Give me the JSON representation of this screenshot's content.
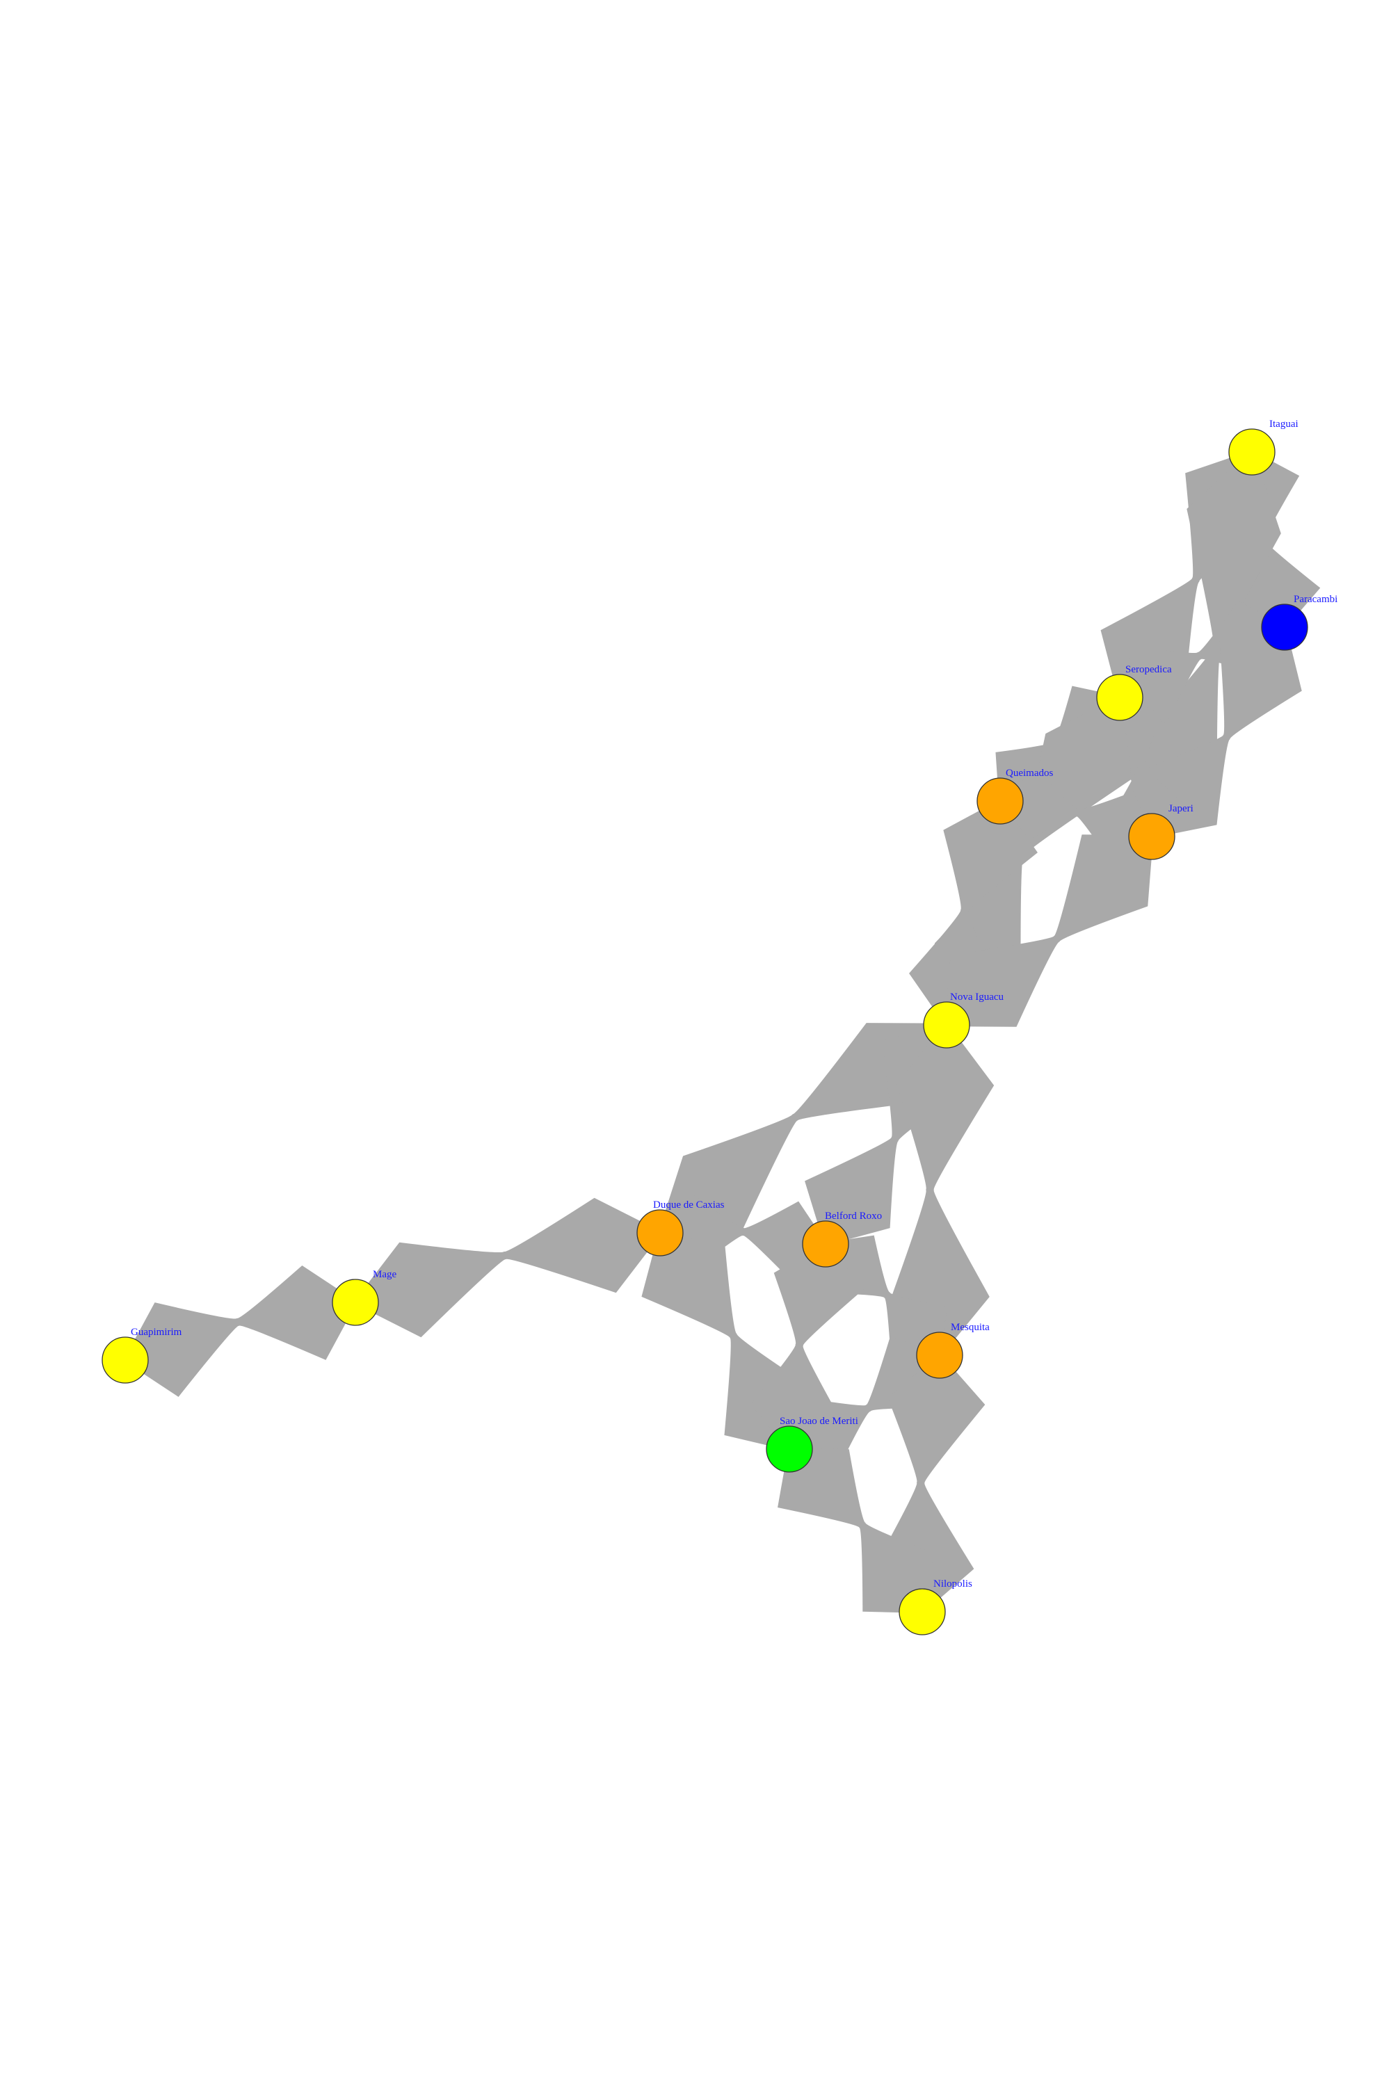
{
  "diagram": {
    "type": "network-graph",
    "edge_color": "#a9a9a9",
    "label_color": "#1a1aff",
    "nodes": [
      {
        "id": "itaguai",
        "label": "Itaguai",
        "color": "#ffff00"
      },
      {
        "id": "paracambi",
        "label": "Paracambi",
        "color": "#0000ff"
      },
      {
        "id": "seropedica",
        "label": "Seropedica",
        "color": "#ffff00"
      },
      {
        "id": "queimados",
        "label": "Queimados",
        "color": "#ffa500"
      },
      {
        "id": "japeri",
        "label": "Japeri",
        "color": "#ffa500"
      },
      {
        "id": "nova_iguacu",
        "label": "Nova Iguacu",
        "color": "#ffff00"
      },
      {
        "id": "duque_de_caxias",
        "label": "Duque de Caxias",
        "color": "#ffa500"
      },
      {
        "id": "belford_roxo",
        "label": "Belford Roxo",
        "color": "#ffa500"
      },
      {
        "id": "mage",
        "label": "Mage",
        "color": "#ffff00"
      },
      {
        "id": "guapimirim",
        "label": "Guapimirim",
        "color": "#ffff00"
      },
      {
        "id": "mesquita",
        "label": "Mesquita",
        "color": "#ffa500"
      },
      {
        "id": "sao_joao_de_meriti",
        "label": "Sao Joao de Meriti",
        "color": "#00ff00"
      },
      {
        "id": "nilopolis",
        "label": "Nilopolis",
        "color": "#ffff00"
      }
    ],
    "edges": [
      [
        "itaguai",
        "seropedica"
      ],
      [
        "itaguai",
        "paracambi"
      ],
      [
        "itaguai",
        "japeri"
      ],
      [
        "paracambi",
        "seropedica"
      ],
      [
        "paracambi",
        "japeri"
      ],
      [
        "seropedica",
        "queimados"
      ],
      [
        "seropedica",
        "japeri"
      ],
      [
        "seropedica",
        "nova_iguacu"
      ],
      [
        "queimados",
        "japeri"
      ],
      [
        "queimados",
        "nova_iguacu"
      ],
      [
        "japeri",
        "nova_iguacu"
      ],
      [
        "nova_iguacu",
        "duque_de_caxias"
      ],
      [
        "nova_iguacu",
        "belford_roxo"
      ],
      [
        "nova_iguacu",
        "mesquita"
      ],
      [
        "duque_de_caxias",
        "belford_roxo"
      ],
      [
        "duque_de_caxias",
        "mage"
      ],
      [
        "duque_de_caxias",
        "sao_joao_de_meriti"
      ],
      [
        "mage",
        "guapimirim"
      ],
      [
        "belford_roxo",
        "mesquita"
      ],
      [
        "belford_roxo",
        "sao_joao_de_meriti"
      ],
      [
        "mesquita",
        "sao_joao_de_meriti"
      ],
      [
        "mesquita",
        "nilopolis"
      ],
      [
        "sao_joao_de_meriti",
        "nilopolis"
      ]
    ]
  }
}
